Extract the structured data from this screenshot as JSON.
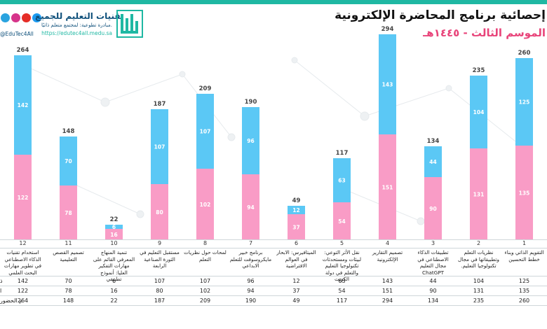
{
  "brand": {
    "name": "تقنيات التعليم للجميع",
    "tagline": "مبادرة تطوعية: لمجتمع متعلم ذاتيًا.",
    "url": "https://edutec4all.medu.sa",
    "handle": "@EduTec4All",
    "icons": [
      "twitter-icon",
      "youtube-icon",
      "instagram-icon",
      "telegram-icon"
    ],
    "colors": {
      "primary": "#0d4f7a",
      "accent": "#1fb8a3"
    }
  },
  "title": "إحصائية برنامج المحاضرة الإلكترونية",
  "subtitle": "الموسم الثالث - ١٤٤٥هـ",
  "chart_data": {
    "type": "bar",
    "stacked": true,
    "categories": [
      "التقويم الذاتي وبناء خطط التحسين",
      "نظريات التعلم وتطبيقاتها في مجال تكنولوجيا التعليم.",
      "تطبيقات الذكاء الاصطناعي في مجال التعليم ChatGPT",
      "تصميم التقارير الإلكترونية",
      "نقل الأثر التوعي: لبيئات ومستحدثات تكنولوجيا التعليم والتعلم في دولة الكويت",
      "الميتافيرس: الابحار في العوالم الافتراضية",
      "برنامج خبير مايكروسوفت للتعلم الابداعي",
      "لمحات حول نظريات التعلم",
      "مستقبل التعليم في الثورة الصناعية الرابعة",
      "تنمية المنهاج المعرفي القائم على مهارات التفكير العليا: أنموذج تطبيقي",
      "تصميم القصص التعليمية",
      "استخدام تقنيات الذكاء الاصطناعي في تطوير مهارات البحث العلمي"
    ],
    "column_numbers": [
      "1",
      "2",
      "3",
      "4",
      "5",
      "6",
      "7",
      "8",
      "9",
      "10",
      "11",
      "12"
    ],
    "series": [
      {
        "name": "ذكور",
        "color": "#f99cc6",
        "values": [
          135,
          131,
          90,
          151,
          54,
          37,
          94,
          102,
          80,
          16,
          78,
          122
        ]
      },
      {
        "name": "إناث",
        "color": "#5bc8f5",
        "values": [
          125,
          104,
          44,
          143,
          63,
          12,
          96,
          107,
          107,
          6,
          70,
          142
        ]
      }
    ],
    "totals_name": "م الحضور",
    "totals": [
      260,
      235,
      134,
      294,
      117,
      49,
      190,
      209,
      187,
      22,
      148,
      264
    ],
    "table_rows": [
      {
        "label": "ذ",
        "values": [
          125,
          104,
          44,
          143,
          63,
          12,
          96,
          107,
          107,
          6,
          70,
          142
        ]
      },
      {
        "label": "ا",
        "values": [
          135,
          131,
          90,
          151,
          54,
          37,
          94,
          102,
          80,
          16,
          78,
          122
        ]
      },
      {
        "label": "م الحضور",
        "values": [
          260,
          235,
          134,
          294,
          117,
          49,
          190,
          209,
          187,
          22,
          148,
          264
        ]
      }
    ],
    "ylim": [
      0,
      300
    ],
    "x_direction": "right-to-left",
    "grid": false,
    "legend": "none"
  }
}
